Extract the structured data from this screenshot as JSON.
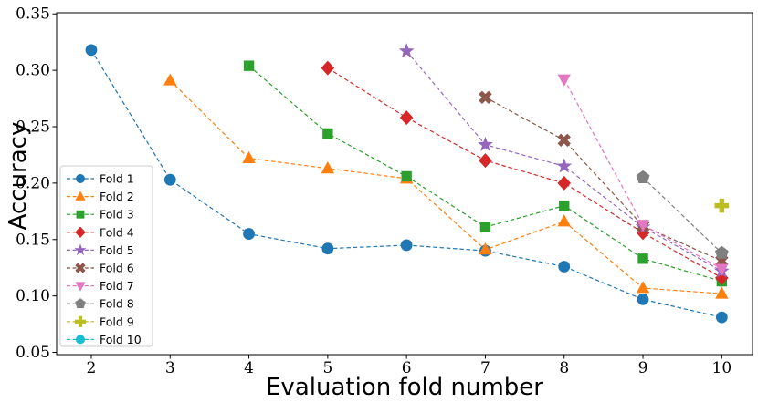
{
  "chart_data": {
    "type": "line",
    "title": "",
    "xlabel": "Evaluation fold number",
    "ylabel": "Accuracy",
    "xlim": [
      1.56,
      10.39
    ],
    "ylim": [
      0.048,
      0.351
    ],
    "x_ticks": [
      2,
      3,
      4,
      5,
      6,
      7,
      8,
      9,
      10
    ],
    "y_ticks": [
      0.05,
      0.1,
      0.15,
      0.2,
      0.25,
      0.3,
      0.35
    ],
    "y_tick_labels": [
      "0.05",
      "0.10",
      "0.15",
      "0.20",
      "0.25",
      "0.30",
      "0.35"
    ],
    "grid": false,
    "line_style": "dashed",
    "legend_position": "lower-left",
    "series": [
      {
        "name": "Fold 1",
        "color": "#1f77b4",
        "marker": "circle",
        "x": [
          2,
          3,
          4,
          5,
          6,
          7,
          8,
          9,
          10
        ],
        "y": [
          0.318,
          0.203,
          0.155,
          0.142,
          0.145,
          0.14,
          0.126,
          0.097,
          0.081
        ]
      },
      {
        "name": "Fold 2",
        "color": "#ff7f0e",
        "marker": "triangle-up",
        "x": [
          3,
          4,
          5,
          6,
          7,
          8,
          9,
          10
        ],
        "y": [
          0.291,
          0.222,
          0.213,
          0.204,
          0.141,
          0.166,
          0.107,
          0.102
        ]
      },
      {
        "name": "Fold 3",
        "color": "#2ca02c",
        "marker": "square",
        "x": [
          4,
          5,
          6,
          7,
          8,
          9,
          10
        ],
        "y": [
          0.304,
          0.244,
          0.206,
          0.161,
          0.18,
          0.133,
          0.113
        ]
      },
      {
        "name": "Fold 4",
        "color": "#d62728",
        "marker": "diamond",
        "x": [
          5,
          6,
          7,
          8,
          9,
          10
        ],
        "y": [
          0.302,
          0.258,
          0.22,
          0.2,
          0.156,
          0.116
        ]
      },
      {
        "name": "Fold 5",
        "color": "#9467bd",
        "marker": "star",
        "x": [
          6,
          7,
          8,
          9,
          10
        ],
        "y": [
          0.317,
          0.234,
          0.215,
          0.161,
          0.122
        ]
      },
      {
        "name": "Fold 6",
        "color": "#8c564b",
        "marker": "x",
        "x": [
          7,
          8,
          9,
          10
        ],
        "y": [
          0.276,
          0.238,
          0.162,
          0.131
        ]
      },
      {
        "name": "Fold 7",
        "color": "#e377c2",
        "marker": "triangle-down",
        "x": [
          8,
          9,
          10
        ],
        "y": [
          0.292,
          0.163,
          0.124
        ]
      },
      {
        "name": "Fold 8",
        "color": "#7f7f7f",
        "marker": "pentagon",
        "x": [
          9,
          10
        ],
        "y": [
          0.205,
          0.138
        ]
      },
      {
        "name": "Fold 9",
        "color": "#bcbd22",
        "marker": "plus",
        "x": [
          10
        ],
        "y": [
          0.18
        ]
      },
      {
        "name": "Fold 10",
        "color": "#17becf",
        "marker": "circle",
        "x": [],
        "y": []
      }
    ]
  }
}
